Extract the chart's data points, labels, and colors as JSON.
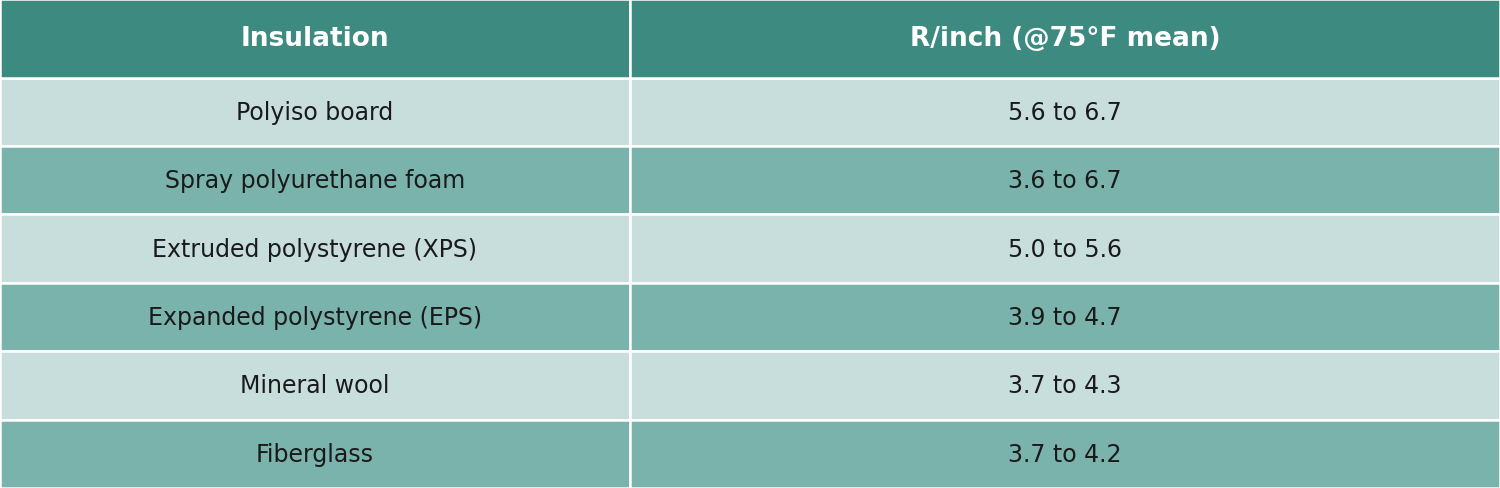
{
  "header": [
    "Insulation",
    "R/inch (@75°F mean)"
  ],
  "rows": [
    [
      "Polyiso board",
      "5.6 to 6.7"
    ],
    [
      "Spray polyurethane foam",
      "3.6 to 6.7"
    ],
    [
      "Extruded polystyrene (XPS)",
      "5.0 to 5.6"
    ],
    [
      "Expanded polystyrene (EPS)",
      "3.9 to 4.7"
    ],
    [
      "Mineral wool",
      "3.7 to 4.3"
    ],
    [
      "Fiberglass",
      "3.7 to 4.2"
    ]
  ],
  "header_bg": "#3d8b80",
  "row_color_light": "#c8dedd",
  "row_color_dark": "#7ab3ab",
  "header_text_color": "#ffffff",
  "row_text_color": "#1a1a1a",
  "col_split": 0.42,
  "border_color": "#ffffff",
  "header_fontsize": 19,
  "row_fontsize": 17,
  "fig_width": 15.0,
  "fig_height": 4.89,
  "fig_bg": "#ffffff"
}
